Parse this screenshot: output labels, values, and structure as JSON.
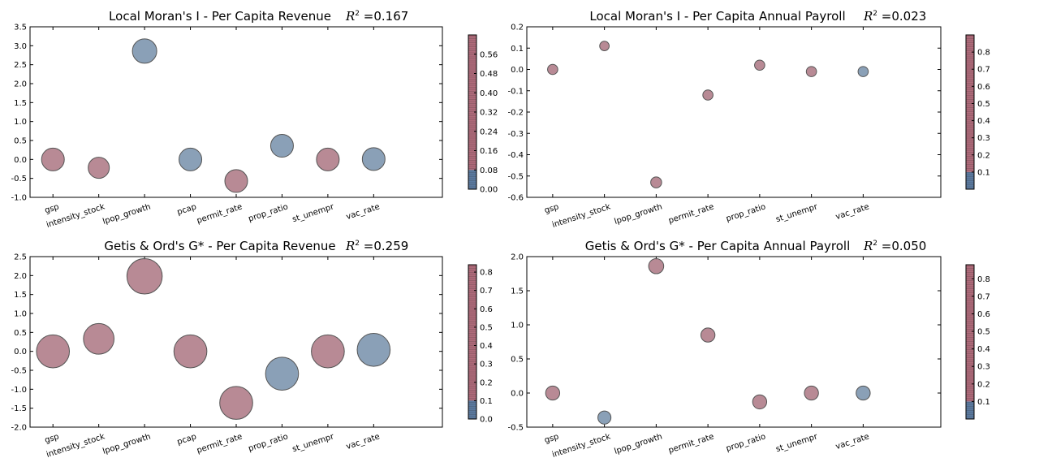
{
  "colors": {
    "red": "#b07d89",
    "blue": "#7d96af",
    "cbar_red": "#b06a7a",
    "cbar_blue": "#5b7aa0"
  },
  "chart_data": [
    {
      "type": "scatter",
      "title": "Local Moran's I - Per Capita Revenue",
      "r2_label": "=0.167",
      "categories": [
        "gsp",
        "intensity_stock",
        "lpop_growth",
        "pcap",
        "permit_rate",
        "prop_ratio",
        "st_unempr",
        "vac_rate"
      ],
      "values": [
        0.0,
        -0.22,
        2.86,
        0.0,
        -0.57,
        0.36,
        0.0,
        0.01
      ],
      "colors": [
        "red",
        "red",
        "blue",
        "blue",
        "red",
        "blue",
        "red",
        "blue"
      ],
      "ylim": [
        -1.0,
        3.5
      ],
      "yticks": [
        "-1.0",
        "-0.5",
        "0.0",
        "0.5",
        "1.0",
        "1.5",
        "2.0",
        "2.5",
        "3.0",
        "3.5"
      ],
      "colorbar_ticks": [
        "0.00",
        "0.08",
        "0.16",
        "0.24",
        "0.32",
        "0.40",
        "0.48",
        "0.56"
      ],
      "colorbar_range": [
        0,
        0.64
      ],
      "colorbar_split": 0.08
    },
    {
      "type": "scatter",
      "title": "Local Moran's I - Per Capita Annual Payroll",
      "r2_label": "=0.023",
      "categories": [
        "gsp",
        "intensity_stock",
        "lpop_growth",
        "permit_rate",
        "prop_ratio",
        "st_unempr",
        "vac_rate"
      ],
      "values": [
        0.0,
        0.11,
        -0.53,
        -0.12,
        0.02,
        -0.01,
        -0.01
      ],
      "colors": [
        "red",
        "red",
        "red",
        "red",
        "red",
        "red",
        "blue"
      ],
      "ylim": [
        -0.6,
        0.2
      ],
      "yticks": [
        "-0.6",
        "-0.5",
        "-0.4",
        "-0.3",
        "-0.2",
        "-0.1",
        "0.0",
        "0.1",
        "0.2"
      ],
      "colorbar_ticks": [
        "0.1",
        "0.2",
        "0.3",
        "0.4",
        "0.5",
        "0.6",
        "0.7",
        "0.8"
      ],
      "colorbar_range": [
        0,
        0.9
      ],
      "colorbar_split": 0.1
    },
    {
      "type": "scatter",
      "title": "Getis & Ord's G* - Per Capita Revenue",
      "r2_label": "=0.259",
      "categories": [
        "gsp",
        "intensity_stock",
        "lpop_growth",
        "pcap",
        "permit_rate",
        "prop_ratio",
        "st_unempr",
        "vac_rate"
      ],
      "values": [
        0.0,
        0.33,
        1.98,
        0.0,
        -1.36,
        -0.59,
        0.0,
        0.04
      ],
      "colors": [
        "red",
        "red",
        "red",
        "red",
        "red",
        "blue",
        "red",
        "blue"
      ],
      "ylim": [
        -2.0,
        2.5
      ],
      "yticks": [
        "-2.0",
        "-1.5",
        "-1.0",
        "-0.5",
        "0.0",
        "0.5",
        "1.0",
        "1.5",
        "2.0",
        "2.5"
      ],
      "colorbar_ticks": [
        "0.0",
        "0.1",
        "0.2",
        "0.3",
        "0.4",
        "0.5",
        "0.6",
        "0.7",
        "0.8"
      ],
      "colorbar_range": [
        0,
        0.84
      ],
      "colorbar_split": 0.1
    },
    {
      "type": "scatter",
      "title": "Getis & Ord's G* - Per Capita Annual Payroll",
      "r2_label": "=0.050",
      "categories": [
        "gsp",
        "intensity_stock",
        "lpop_growth",
        "permit_rate",
        "prop_ratio",
        "st_unempr",
        "vac_rate"
      ],
      "values": [
        0.0,
        -0.36,
        1.86,
        0.85,
        -0.13,
        0.0,
        0.0
      ],
      "colors": [
        "red",
        "blue",
        "red",
        "red",
        "red",
        "red",
        "blue"
      ],
      "ylim": [
        -0.5,
        2.0
      ],
      "yticks": [
        "-0.5",
        "0.0",
        "0.5",
        "1.0",
        "1.5",
        "2.0"
      ],
      "colorbar_ticks": [
        "0.1",
        "0.2",
        "0.3",
        "0.4",
        "0.5",
        "0.6",
        "0.7",
        "0.8"
      ],
      "colorbar_range": [
        0,
        0.88
      ],
      "colorbar_split": 0.1
    }
  ]
}
